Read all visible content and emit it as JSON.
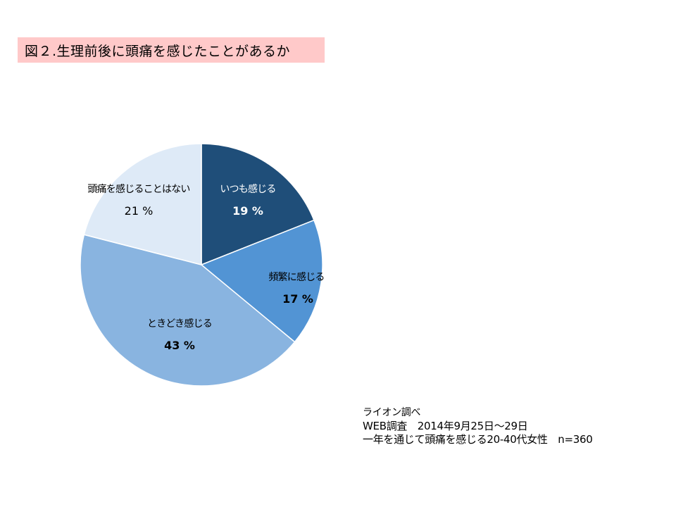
{
  "title": "図２.生理前後に頭痛を感じたことがあるか",
  "chart_data": {
    "type": "pie",
    "start_angle_deg": 0,
    "direction": "clockwise",
    "slices": [
      {
        "label": "いつも感じる",
        "value": 19,
        "value_label": "19 %",
        "color": "#1f4e79",
        "label_color": "#ffffff",
        "value_bold": true
      },
      {
        "label": "頻繁に感じる",
        "value": 17,
        "value_label": "17 %",
        "color": "#5294d4",
        "label_color": "#000000",
        "value_bold": true
      },
      {
        "label": "ときどき感じる",
        "value": 43,
        "value_label": "43 %",
        "color": "#89b4e0",
        "label_color": "#000000",
        "value_bold": true
      },
      {
        "label": "頭痛を感じることはない",
        "value": 21,
        "value_label": "21 %",
        "color": "#deeaf7",
        "label_color": "#000000",
        "value_bold": false
      }
    ]
  },
  "source": {
    "line1": "ライオン調べ",
    "line2": "WEB調査　2014年9月25日～29日",
    "line3": "一年を通じて頭痛を感じる20-40代女性　n=360"
  }
}
